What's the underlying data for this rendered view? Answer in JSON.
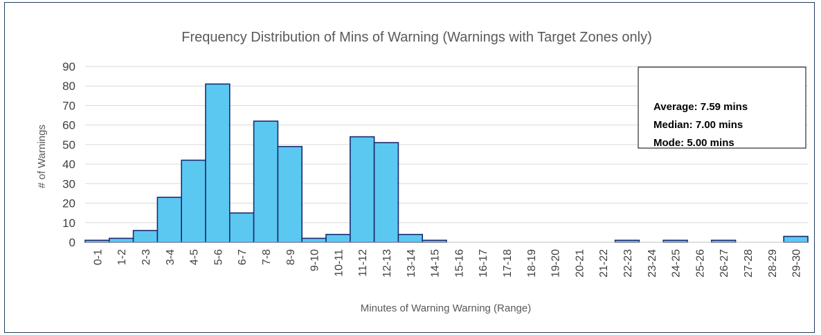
{
  "chart_data": {
    "type": "bar",
    "title": "Frequency Distribution of Mins of Warning (Warnings with Target Zones only)",
    "xlabel": "Minutes of Warning Warning (Range)",
    "ylabel": "# of Warnings",
    "ylim": [
      0,
      90
    ],
    "yticks": [
      0,
      10,
      20,
      30,
      40,
      50,
      60,
      70,
      80,
      90
    ],
    "grid": true,
    "categories": [
      "0-1",
      "1-2",
      "2-3",
      "3-4",
      "4-5",
      "5-6",
      "6-7",
      "7-8",
      "8-9",
      "9-10",
      "10-11",
      "11-12",
      "12-13",
      "13-14",
      "14-15",
      "15-16",
      "16-17",
      "17-18",
      "18-19",
      "19-20",
      "20-21",
      "21-22",
      "22-23",
      "23-24",
      "24-25",
      "25-26",
      "26-27",
      "27-28",
      "28-29",
      "29-30"
    ],
    "values": [
      1,
      2,
      6,
      23,
      42,
      81,
      15,
      62,
      49,
      2,
      4,
      54,
      51,
      4,
      1,
      0,
      0,
      0,
      0,
      0,
      0,
      0,
      1,
      0,
      1,
      0,
      1,
      0,
      0,
      3
    ],
    "bar_color": "#5bc8f2",
    "bar_edge_color": "#1a2a6c",
    "annotation": {
      "lines": [
        "Average: 7.59 mins",
        "Median: 7.00 mins",
        "Mode: 5.00 mins"
      ]
    }
  }
}
